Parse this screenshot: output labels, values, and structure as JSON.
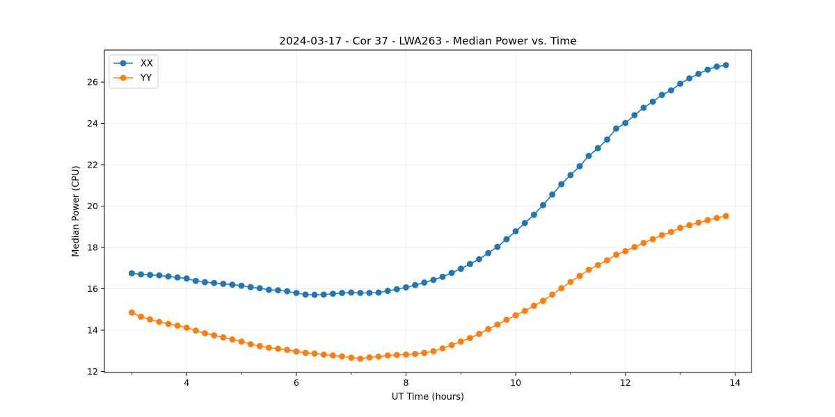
{
  "chart_data": {
    "type": "line",
    "title": "2024-03-17 - Cor 37 - LWA263 - Median Power vs. Time",
    "xlabel": "UT Time (hours)",
    "ylabel": "Median Power (CPU)",
    "xlim": [
      2.5,
      14.3
    ],
    "ylim": [
      11.95,
      27.55
    ],
    "xticks": [
      4,
      6,
      8,
      10,
      12,
      14
    ],
    "yticks": [
      12,
      14,
      16,
      18,
      20,
      22,
      24,
      26
    ],
    "grid": true,
    "legend_position": "top-left",
    "x": [
      3.0,
      3.167,
      3.333,
      3.5,
      3.667,
      3.833,
      4.0,
      4.167,
      4.333,
      4.5,
      4.667,
      4.833,
      5.0,
      5.167,
      5.333,
      5.5,
      5.667,
      5.833,
      6.0,
      6.167,
      6.333,
      6.5,
      6.667,
      6.833,
      7.0,
      7.167,
      7.333,
      7.5,
      7.667,
      7.833,
      8.0,
      8.167,
      8.333,
      8.5,
      8.667,
      8.833,
      9.0,
      9.167,
      9.333,
      9.5,
      9.667,
      9.833,
      10.0,
      10.167,
      10.333,
      10.5,
      10.667,
      10.833,
      11.0,
      11.167,
      11.333,
      11.5,
      11.667,
      11.833,
      12.0,
      12.167,
      12.333,
      12.5,
      12.667,
      12.833,
      13.0,
      13.167,
      13.333,
      13.5,
      13.667,
      13.833
    ],
    "series": [
      {
        "name": "XX",
        "color": "#1f77b4",
        "values": [
          16.75,
          16.7,
          16.67,
          16.65,
          16.6,
          16.55,
          16.5,
          16.38,
          16.32,
          16.28,
          16.24,
          16.2,
          16.15,
          16.08,
          16.03,
          15.95,
          15.93,
          15.88,
          15.8,
          15.72,
          15.71,
          15.72,
          15.76,
          15.8,
          15.82,
          15.8,
          15.8,
          15.82,
          15.9,
          15.98,
          16.07,
          16.18,
          16.3,
          16.43,
          16.58,
          16.77,
          16.97,
          17.2,
          17.43,
          17.73,
          18.03,
          18.4,
          18.78,
          19.18,
          19.58,
          20.05,
          20.56,
          21.06,
          21.5,
          21.93,
          22.43,
          22.8,
          23.22,
          23.75,
          24.02,
          24.4,
          24.76,
          25.05,
          25.38,
          25.6,
          25.92,
          26.18,
          26.4,
          26.6,
          26.75,
          26.82
        ]
      },
      {
        "name": "YY",
        "color": "#ff7f0e",
        "values": [
          14.85,
          14.65,
          14.52,
          14.4,
          14.3,
          14.22,
          14.12,
          13.98,
          13.85,
          13.75,
          13.65,
          13.55,
          13.45,
          13.32,
          13.23,
          13.15,
          13.1,
          13.05,
          12.97,
          12.9,
          12.87,
          12.82,
          12.78,
          12.73,
          12.67,
          12.62,
          12.68,
          12.72,
          12.78,
          12.8,
          12.82,
          12.85,
          12.9,
          12.98,
          13.12,
          13.28,
          13.45,
          13.62,
          13.82,
          14.05,
          14.27,
          14.5,
          14.72,
          14.93,
          15.18,
          15.42,
          15.72,
          16.03,
          16.33,
          16.62,
          16.92,
          17.15,
          17.38,
          17.65,
          17.82,
          18.02,
          18.22,
          18.4,
          18.6,
          18.75,
          18.95,
          19.08,
          19.2,
          19.32,
          19.43,
          19.52
        ]
      }
    ]
  }
}
